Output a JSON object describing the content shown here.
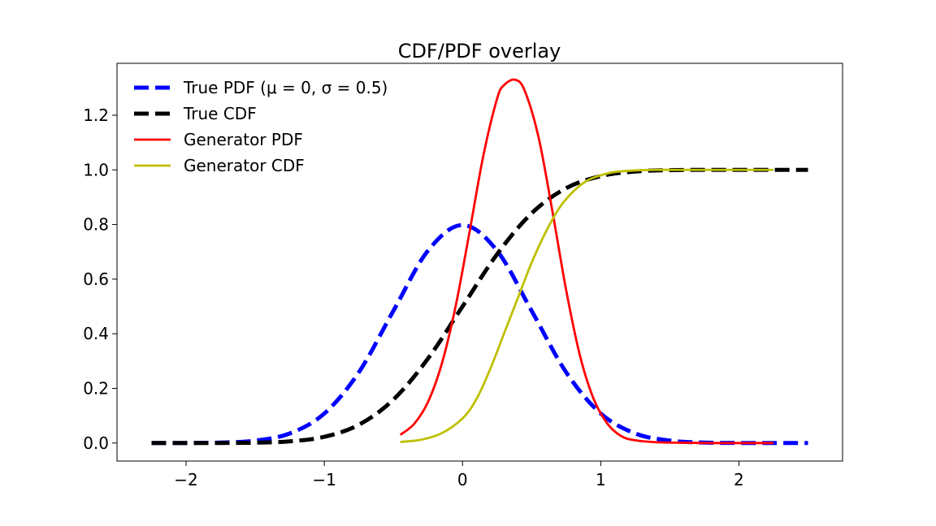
{
  "chart_data": {
    "type": "line",
    "title": "CDF/PDF overlay",
    "xlabel": "",
    "ylabel": "",
    "xlim": [
      -2.5,
      2.75
    ],
    "ylim": [
      -0.066,
      1.39
    ],
    "xticks": [
      -2,
      -1,
      0,
      1,
      2
    ],
    "yticks": [
      0.0,
      0.2,
      0.4,
      0.6,
      0.8,
      1.0,
      1.2
    ],
    "xtick_labels": [
      "−2",
      "−1",
      "0",
      "1",
      "2"
    ],
    "ytick_labels": [
      "0.0",
      "0.2",
      "0.4",
      "0.6",
      "0.8",
      "1.0",
      "1.2"
    ],
    "grid": false,
    "legend_position": "top-left",
    "series": [
      {
        "name": "True PDF (μ = 0,  σ = 0.5)",
        "color": "#0000ff",
        "style": "dashed",
        "x": [
          -2.25,
          -2.0,
          -1.75,
          -1.5,
          -1.25,
          -1.0,
          -0.75,
          -0.5,
          -0.25,
          0.0,
          0.25,
          0.5,
          0.75,
          1.0,
          1.25,
          1.5,
          1.75,
          2.0,
          2.25,
          2.5
        ],
        "y": [
          0.0,
          0.0003,
          0.0017,
          0.0089,
          0.035,
          0.108,
          0.259,
          0.484,
          0.704,
          0.798,
          0.704,
          0.484,
          0.259,
          0.108,
          0.035,
          0.0089,
          0.0017,
          0.0003,
          0.0,
          0.0
        ]
      },
      {
        "name": "True CDF",
        "color": "#000000",
        "style": "dashed",
        "x": [
          -2.25,
          -2.0,
          -1.75,
          -1.5,
          -1.25,
          -1.0,
          -0.75,
          -0.5,
          -0.25,
          0.0,
          0.25,
          0.5,
          0.75,
          1.0,
          1.25,
          1.5,
          1.75,
          2.0,
          2.25,
          2.5
        ],
        "y": [
          0.0,
          0.0,
          0.0002,
          0.0013,
          0.0062,
          0.0228,
          0.0668,
          0.159,
          0.309,
          0.5,
          0.691,
          0.841,
          0.933,
          0.977,
          0.994,
          0.999,
          1.0,
          1.0,
          1.0,
          1.0
        ]
      },
      {
        "name": "Generator PDF",
        "color": "#ff0000",
        "style": "solid",
        "x": [
          -0.45,
          -0.35,
          -0.25,
          -0.15,
          -0.05,
          0.05,
          0.15,
          0.25,
          0.3,
          0.38,
          0.45,
          0.55,
          0.65,
          0.75,
          0.85,
          0.95,
          1.05,
          1.15,
          1.25,
          1.4,
          1.6,
          1.8,
          2.0,
          2.25
        ],
        "y": [
          0.03,
          0.07,
          0.15,
          0.29,
          0.5,
          0.77,
          1.05,
          1.26,
          1.31,
          1.33,
          1.29,
          1.12,
          0.85,
          0.56,
          0.32,
          0.16,
          0.07,
          0.025,
          0.01,
          0.003,
          0.001,
          0.0,
          0.0,
          0.0
        ]
      },
      {
        "name": "Generator CDF",
        "color": "#bfbf00",
        "style": "solid",
        "x": [
          -0.45,
          -0.3,
          -0.15,
          0.0,
          0.1,
          0.2,
          0.3,
          0.4,
          0.5,
          0.6,
          0.7,
          0.8,
          0.9,
          1.0,
          1.1,
          1.25,
          1.4,
          1.6,
          1.8,
          2.0,
          2.25
        ],
        "y": [
          0.004,
          0.012,
          0.036,
          0.09,
          0.16,
          0.27,
          0.4,
          0.53,
          0.66,
          0.77,
          0.86,
          0.92,
          0.96,
          0.98,
          0.992,
          0.998,
          1.0,
          1.0,
          1.0,
          1.0,
          1.0
        ]
      }
    ]
  }
}
